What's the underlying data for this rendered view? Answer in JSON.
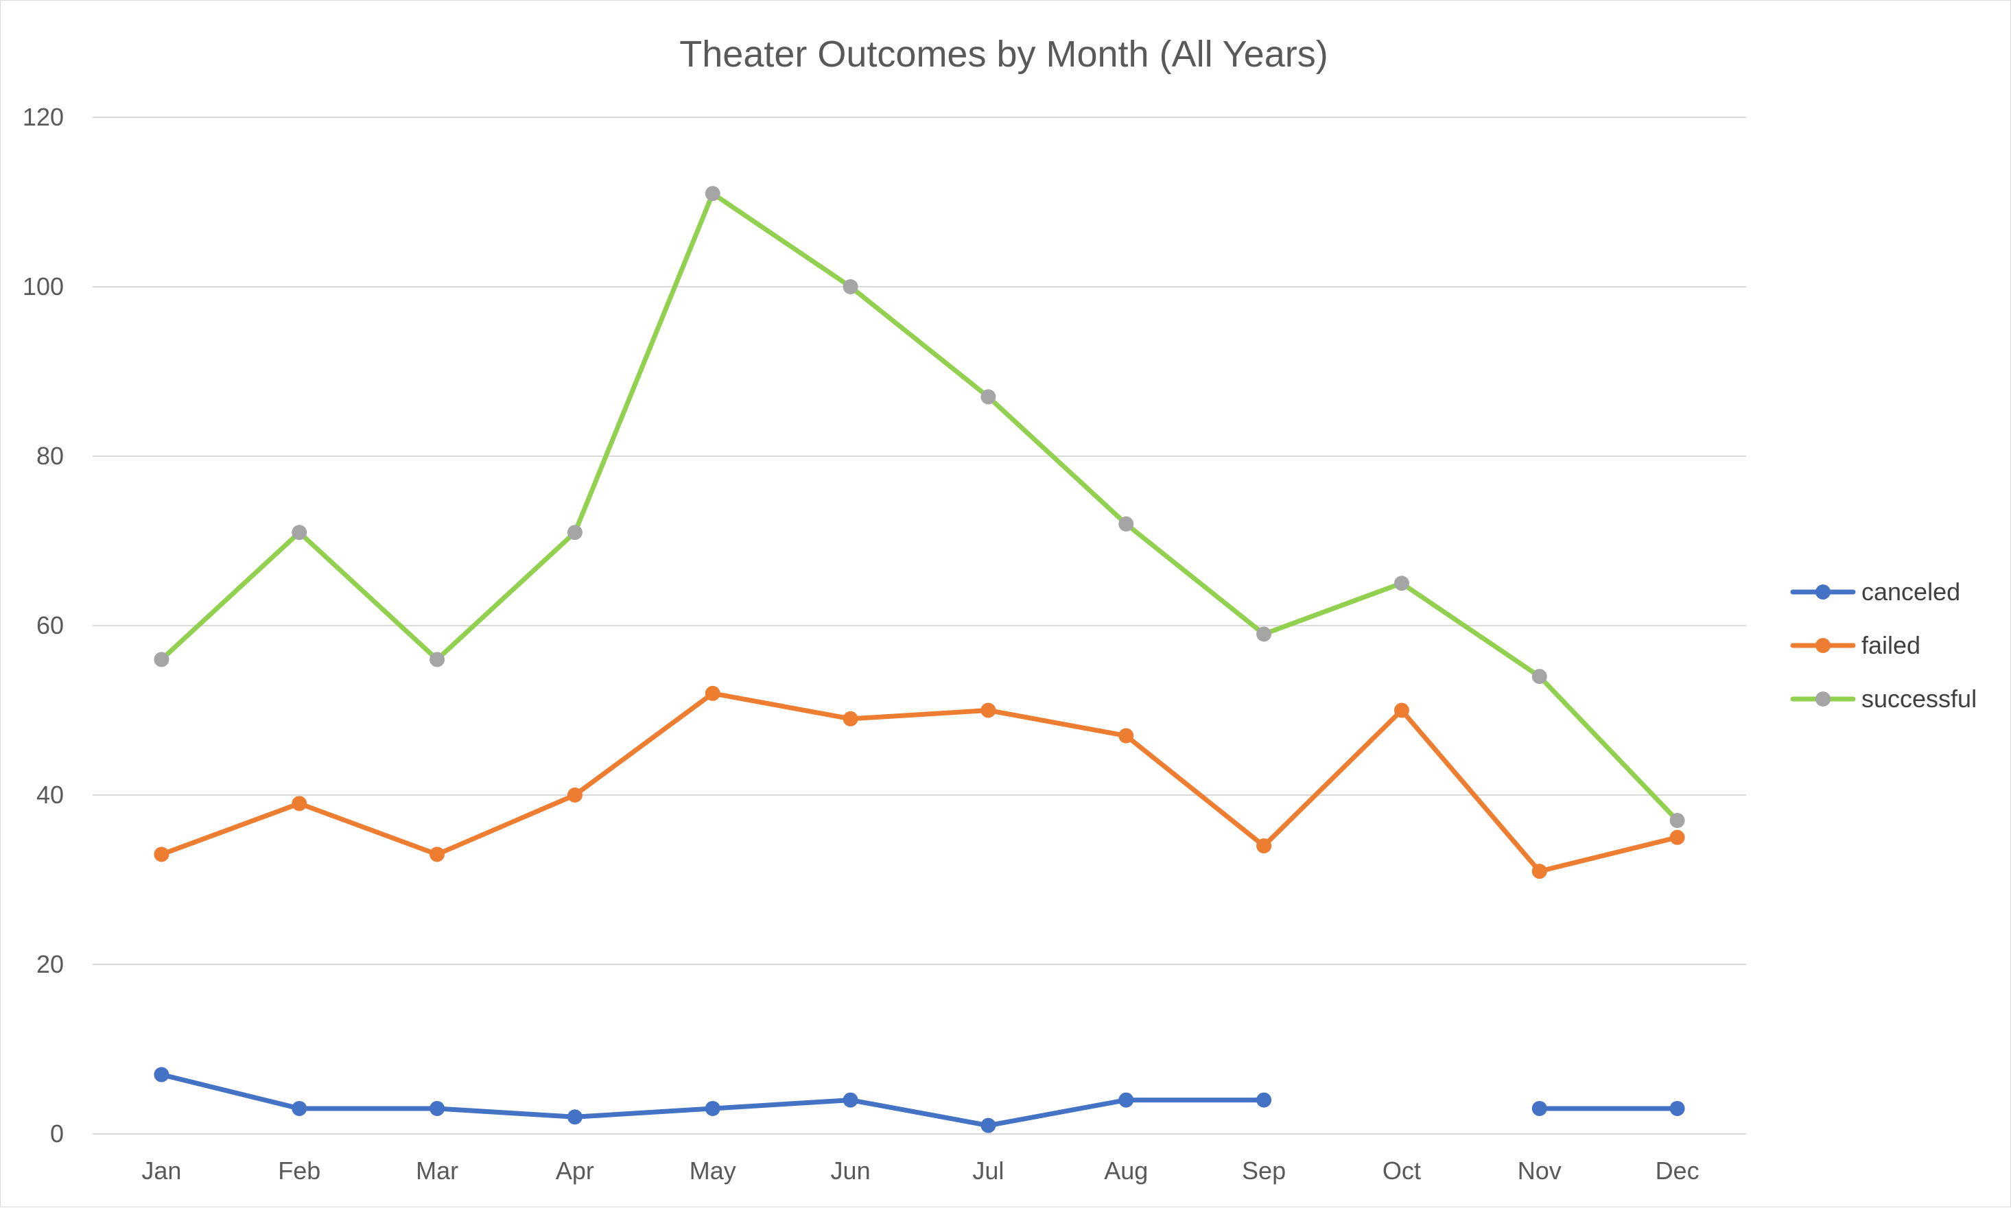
{
  "chart_data": {
    "type": "line",
    "title": "Theater Outcomes by Month (All Years)",
    "xlabel": "",
    "ylabel": "",
    "categories": [
      "Jan",
      "Feb",
      "Mar",
      "Apr",
      "May",
      "Jun",
      "Jul",
      "Aug",
      "Sep",
      "Oct",
      "Nov",
      "Dec"
    ],
    "ylim": [
      0,
      120
    ],
    "yticks": [
      0,
      20,
      40,
      60,
      80,
      100,
      120
    ],
    "grid": true,
    "legend_position": "right",
    "series": [
      {
        "name": "canceled",
        "color": "#4472C4",
        "marker_color": "#4472C4",
        "values": [
          7,
          3,
          3,
          2,
          3,
          4,
          1,
          4,
          4,
          null,
          3,
          3
        ]
      },
      {
        "name": "failed",
        "color": "#ED7D31",
        "marker_color": "#ED7D31",
        "values": [
          33,
          39,
          33,
          40,
          52,
          49,
          50,
          47,
          34,
          50,
          31,
          35
        ]
      },
      {
        "name": "successful",
        "color": "#92D050",
        "marker_color": "#A5A5A5",
        "values": [
          56,
          71,
          56,
          71,
          111,
          100,
          87,
          72,
          59,
          65,
          54,
          37
        ]
      }
    ]
  }
}
